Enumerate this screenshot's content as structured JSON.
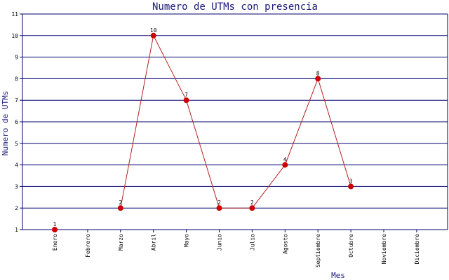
{
  "chart_data": {
    "type": "line",
    "title": "Numero de UTMs con presencia",
    "xlabel": "Mes",
    "ylabel": "Numero de UTMs",
    "categories": [
      "Enero",
      "Febrero",
      "Marzo",
      "Abril",
      "Mayo",
      "Junio",
      "Julio",
      "Agosto",
      "Septiembre",
      "Octubre",
      "Noviembre",
      "Diciembre"
    ],
    "series": [
      {
        "values": [
          1,
          null,
          2,
          10,
          7,
          2,
          2,
          4,
          8,
          3,
          null,
          null
        ]
      }
    ],
    "ylim": [
      1,
      11
    ],
    "yticks": [
      1,
      2,
      3,
      4,
      5,
      6,
      7,
      8,
      9,
      10,
      11
    ],
    "grid": true,
    "colors": {
      "line": "#b22222",
      "marker": "#cc0000",
      "grid": "#00006e",
      "axis": "#00006e",
      "text": "#1a1a7a"
    }
  }
}
